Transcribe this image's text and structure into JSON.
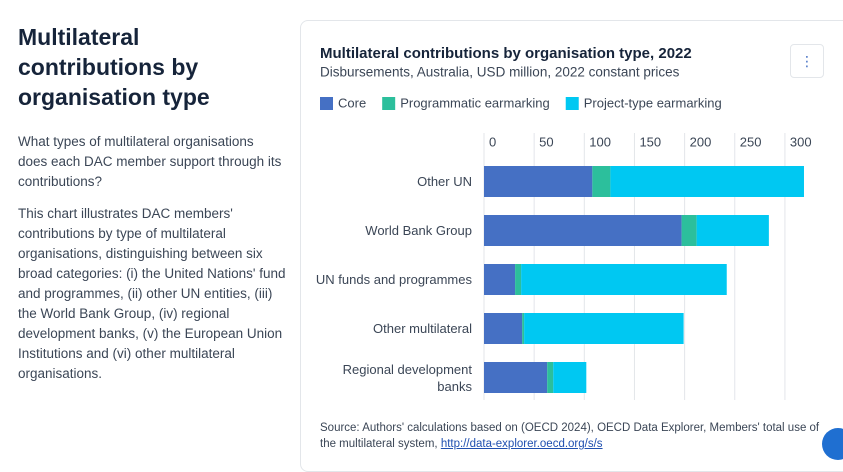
{
  "page": {
    "heading": "Multilateral contributions by organisation type",
    "paragraphs": [
      "What types of multilateral organisations does each DAC member support through its contributions?",
      "This chart illustrates DAC members' contributions by type of multilateral organisations, distinguishing between six broad categories: (i) the United Nations' fund and programmes, (ii) other UN entities, (iii) the World Bank Group, (iv) regional development banks, (v) the European Union Institutions and (vi) other multilateral organisations."
    ]
  },
  "chart_data": {
    "type": "bar",
    "orientation": "horizontal",
    "stacked": true,
    "title": "Multilateral contributions by organisation type, 2022",
    "subtitle": "Disbursements, Australia, USD million, 2022 constant prices",
    "categories": [
      "Other UN",
      "World Bank Group",
      "UN funds and programmes",
      "Other multilateral",
      "Regional development banks"
    ],
    "series": [
      {
        "name": "Core",
        "color": "#4570c4",
        "values": [
          108,
          197,
          31,
          38,
          63
        ]
      },
      {
        "name": "Programmatic earmarking",
        "color": "#2cbf9c",
        "values": [
          18,
          15,
          6,
          2,
          6
        ]
      },
      {
        "name": "Project-type earmarking",
        "color": "#00c8f2",
        "values": [
          193,
          72,
          205,
          159,
          33
        ]
      }
    ],
    "xlim": [
      0,
      325
    ],
    "xticks": [
      0,
      50,
      100,
      150,
      200,
      250,
      300
    ],
    "grid": true,
    "legend": "top",
    "source": "Source: Authors' calculations based on (OECD 2024), OECD Data Explorer, Members' total use of the multilateral system,",
    "source_link": "http://data-explorer.oecd.org/s/s"
  }
}
